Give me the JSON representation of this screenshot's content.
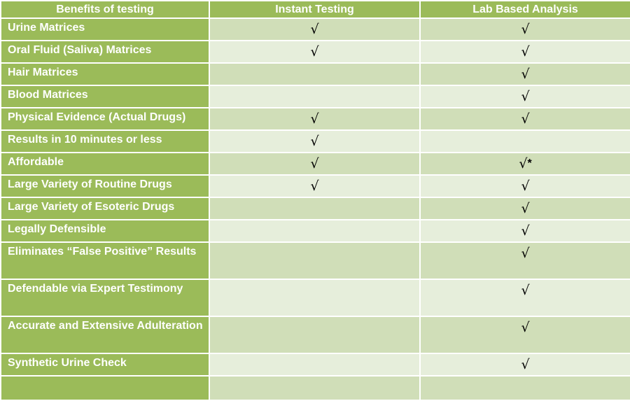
{
  "table": {
    "headers": [
      "Benefits of testing",
      "Instant Testing",
      "Lab Based Analysis"
    ],
    "rows": [
      {
        "label": "Urine Matrices",
        "instant": "√",
        "lab": "√",
        "lab_note": ""
      },
      {
        "label": "Oral Fluid (Saliva) Matrices",
        "instant": "√",
        "lab": "√",
        "lab_note": ""
      },
      {
        "label": "Hair Matrices",
        "instant": "",
        "lab": "√",
        "lab_note": ""
      },
      {
        "label": "Blood Matrices",
        "instant": "",
        "lab": "√",
        "lab_note": ""
      },
      {
        "label": "Physical Evidence (Actual Drugs)",
        "instant": "√",
        "lab": "√",
        "lab_note": ""
      },
      {
        "label": "Results in 10 minutes or less",
        "instant": "√",
        "lab": "",
        "lab_note": ""
      },
      {
        "label": "Affordable",
        "instant": "√",
        "lab": "√",
        "lab_note": "*"
      },
      {
        "label": "Large Variety of Routine Drugs",
        "instant": "√",
        "lab": "√",
        "lab_note": ""
      },
      {
        "label": "Large Variety of Esoteric Drugs",
        "instant": "",
        "lab": "√",
        "lab_note": ""
      },
      {
        "label": "Legally Defensible",
        "instant": "",
        "lab": "√",
        "lab_note": ""
      },
      {
        "label": "Eliminates “False Positive” Results",
        "instant": "",
        "lab": "√",
        "lab_note": ""
      },
      {
        "label": "Defendable via Expert Testimony",
        "instant": "",
        "lab": "√",
        "lab_note": ""
      },
      {
        "label": "Accurate and Extensive Adulteration",
        "instant": "",
        "lab": "√",
        "lab_note": ""
      },
      {
        "label": "Synthetic Urine Check",
        "instant": "",
        "lab": "√",
        "lab_note": ""
      },
      {
        "label": "",
        "instant": "",
        "lab": "",
        "lab_note": ""
      }
    ]
  }
}
